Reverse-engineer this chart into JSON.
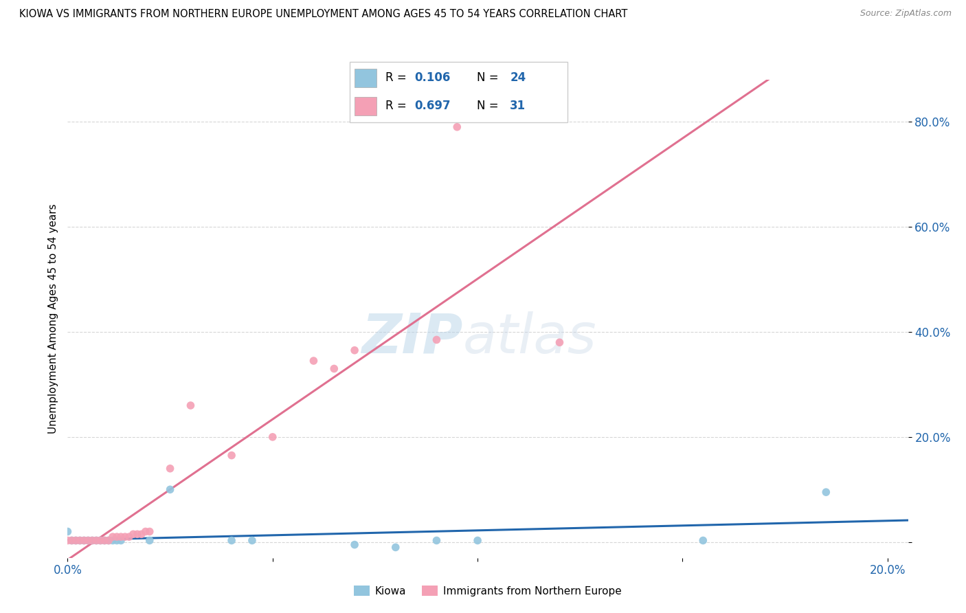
{
  "title": "KIOWA VS IMMIGRANTS FROM NORTHERN EUROPE UNEMPLOYMENT AMONG AGES 45 TO 54 YEARS CORRELATION CHART",
  "source": "Source: ZipAtlas.com",
  "ylabel": "Unemployment Among Ages 45 to 54 years",
  "kiowa_R": 0.106,
  "kiowa_N": 24,
  "northern_europe_R": 0.697,
  "northern_europe_N": 31,
  "kiowa_color": "#92c5de",
  "northern_europe_color": "#f4a0b5",
  "kiowa_line_color": "#2166ac",
  "northern_europe_line_color": "#e07090",
  "background_color": "#ffffff",
  "grid_color": "#cccccc",
  "kiowa_x": [
    0.0,
    0.001,
    0.002,
    0.003,
    0.004,
    0.005,
    0.006,
    0.007,
    0.008,
    0.009,
    0.01,
    0.011,
    0.012,
    0.013,
    0.02,
    0.025,
    0.04,
    0.045,
    0.07,
    0.08,
    0.09,
    0.1,
    0.155,
    0.185
  ],
  "kiowa_y": [
    0.02,
    0.003,
    0.003,
    0.003,
    0.003,
    0.003,
    0.003,
    0.003,
    0.003,
    0.003,
    0.003,
    0.003,
    0.003,
    0.003,
    0.003,
    0.1,
    0.003,
    0.003,
    -0.005,
    -0.01,
    0.003,
    0.003,
    0.003,
    0.095
  ],
  "northern_europe_x": [
    0.0,
    0.001,
    0.002,
    0.003,
    0.004,
    0.005,
    0.006,
    0.007,
    0.008,
    0.009,
    0.01,
    0.011,
    0.012,
    0.013,
    0.014,
    0.015,
    0.016,
    0.017,
    0.018,
    0.019,
    0.02,
    0.025,
    0.03,
    0.04,
    0.05,
    0.06,
    0.065,
    0.07,
    0.09,
    0.095,
    0.12
  ],
  "northern_europe_y": [
    0.003,
    0.003,
    0.003,
    0.003,
    0.003,
    0.003,
    0.003,
    0.003,
    0.003,
    0.003,
    0.003,
    0.01,
    0.01,
    0.01,
    0.01,
    0.01,
    0.015,
    0.015,
    0.015,
    0.02,
    0.02,
    0.14,
    0.26,
    0.165,
    0.2,
    0.345,
    0.33,
    0.365,
    0.385,
    0.79,
    0.38
  ],
  "xlim_min": 0.0,
  "xlim_max": 0.205,
  "ylim_min": -0.03,
  "ylim_max": 0.88,
  "ytick_vals": [
    0.0,
    0.2,
    0.4,
    0.6,
    0.8
  ],
  "ytick_labels": [
    "",
    "20.0%",
    "40.0%",
    "60.0%",
    "80.0%"
  ],
  "xtick_vals": [
    0.0,
    0.05,
    0.1,
    0.15,
    0.2
  ],
  "xtick_labels": [
    "0.0%",
    "",
    "",
    "",
    "20.0%"
  ]
}
